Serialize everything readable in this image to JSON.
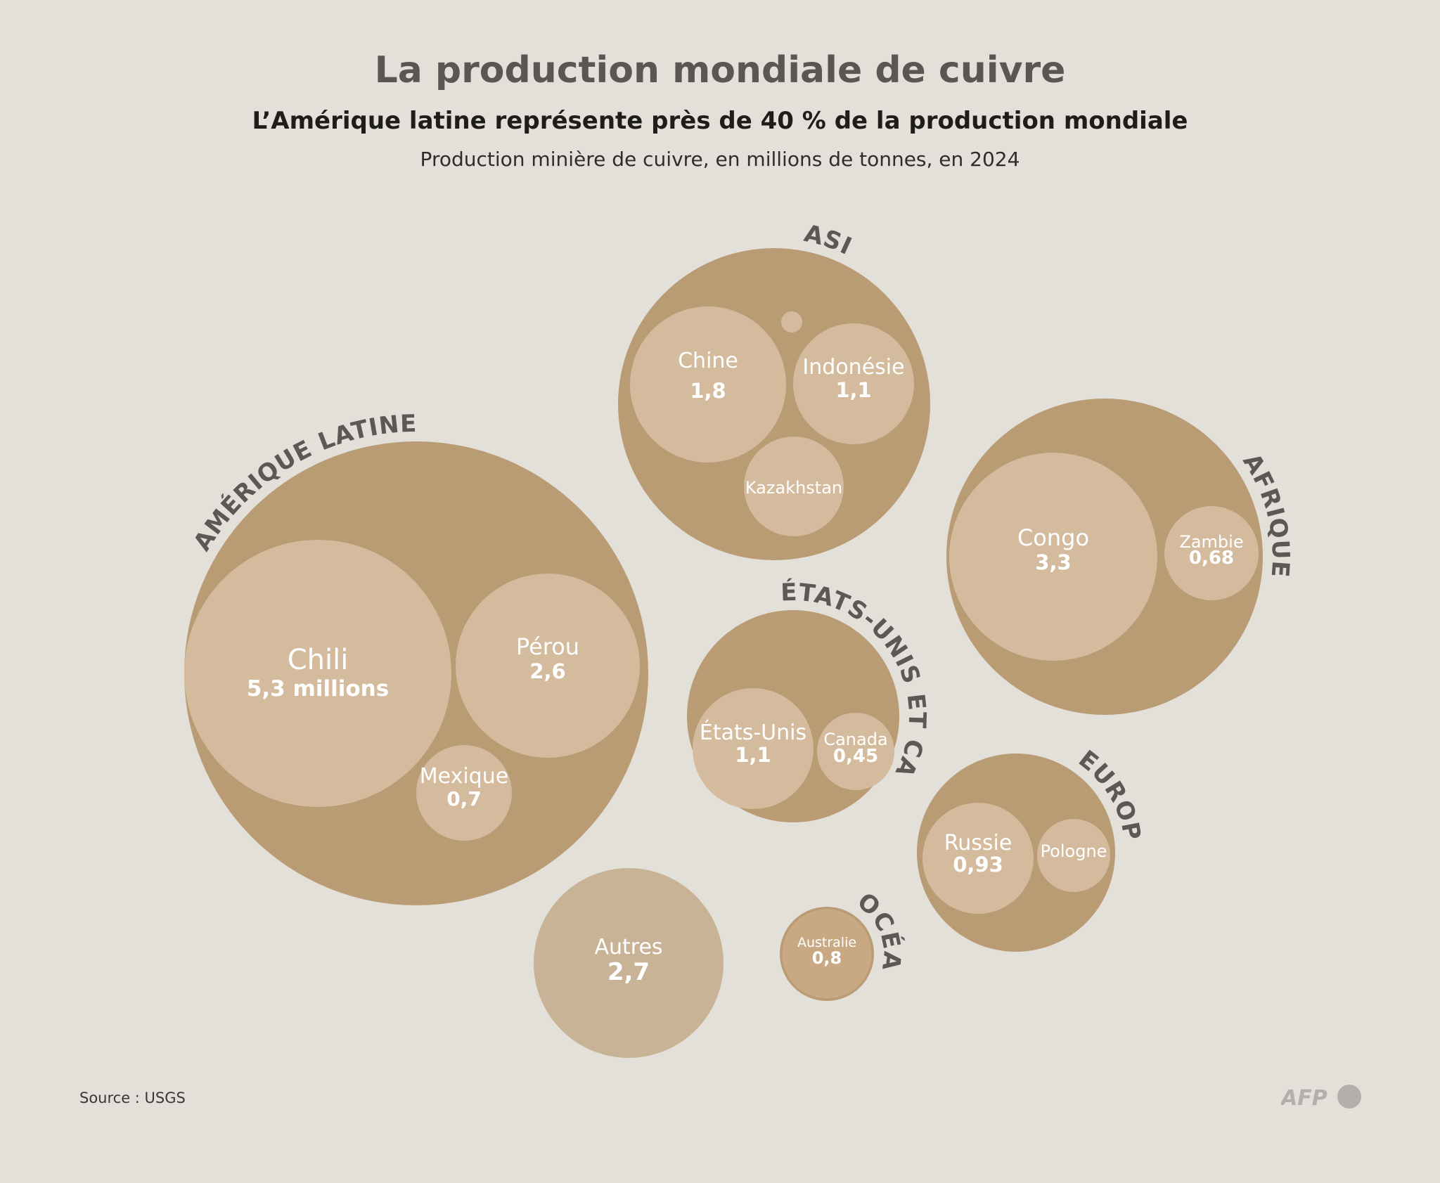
{
  "header": {
    "title": "La production mondiale de cuivre",
    "subtitle": "L’Amérique latine représente près de 40 % de la production mondiale",
    "description": "Production minière de cuivre, en millions de tonnes, en 2024"
  },
  "footer": {
    "source": "Source : USGS",
    "logo_text": "AFP"
  },
  "colors": {
    "background": "#e3dfd9",
    "region_fill": "#b99b74",
    "country_fill": "#d4bb9d",
    "others_fill": "#c9b396",
    "region_label": "#5c5955",
    "logo": "#b3afab"
  },
  "chart_data": {
    "type": "packed-bubble",
    "unit": "millions de tonnes",
    "regions": [
      {
        "name": "AMÉRIQUE LATINE",
        "countries": [
          {
            "name": "Chili",
            "value": 5.3,
            "label": "5,3 millions"
          },
          {
            "name": "Pérou",
            "value": 2.6,
            "label": "2,6"
          },
          {
            "name": "Mexique",
            "value": 0.7,
            "label": "0,7"
          }
        ]
      },
      {
        "name": "ASIE",
        "countries": [
          {
            "name": "Chine",
            "value": 1.8,
            "label": "1,8"
          },
          {
            "name": "Indonésie",
            "value": 1.1,
            "label": "1,1"
          },
          {
            "name": "Kazakhstan",
            "value": null,
            "label": ""
          },
          {
            "name": "",
            "value": null,
            "label": ""
          }
        ]
      },
      {
        "name": "AFRIQUE",
        "countries": [
          {
            "name": "Congo",
            "value": 3.3,
            "label": "3,3"
          },
          {
            "name": "Zambie",
            "value": 0.68,
            "label": "0,68"
          }
        ]
      },
      {
        "name": "ÉTATS-UNIS ET CANADA",
        "countries": [
          {
            "name": "États-Unis",
            "value": 1.1,
            "label": "1,1"
          },
          {
            "name": "Canada",
            "value": 0.45,
            "label": "0,45"
          }
        ]
      },
      {
        "name": "EUROPE",
        "countries": [
          {
            "name": "Russie",
            "value": 0.93,
            "label": "0,93"
          },
          {
            "name": "Pologne",
            "value": null,
            "label": ""
          }
        ]
      },
      {
        "name": "OCÉANIE",
        "countries": [
          {
            "name": "Australie",
            "value": 0.8,
            "label": "0,8"
          }
        ]
      },
      {
        "name": "",
        "countries": [
          {
            "name": "Autres",
            "value": 2.7,
            "label": "2,7"
          }
        ]
      }
    ]
  }
}
